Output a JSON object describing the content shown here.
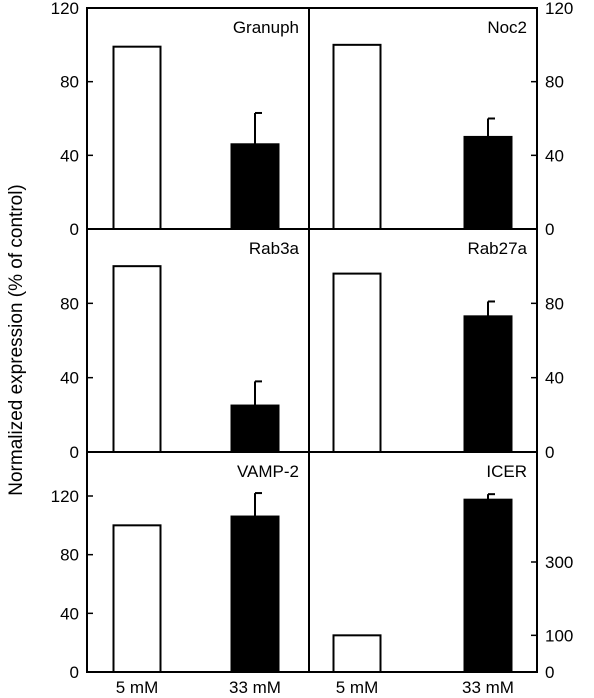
{
  "chart_data": {
    "type": "bar",
    "ylabel": "Normalized expression (% of control)",
    "categories": [
      "5 mM",
      "33 mM"
    ],
    "panels": [
      {
        "label": "Granuph",
        "row": 0,
        "col": 0,
        "ylim": [
          0,
          120
        ],
        "yticks": [
          0,
          40,
          80,
          120
        ],
        "tick_labels_side": "left",
        "values": [
          99,
          46
        ],
        "errors": [
          0,
          17
        ]
      },
      {
        "label": "Noc2",
        "row": 0,
        "col": 1,
        "ylim": [
          0,
          120
        ],
        "yticks": [
          0,
          40,
          80,
          120
        ],
        "tick_labels_side": "right",
        "values": [
          100,
          50
        ],
        "errors": [
          0,
          10
        ]
      },
      {
        "label": "Rab3a",
        "row": 1,
        "col": 0,
        "ylim": [
          0,
          120
        ],
        "yticks": [
          0,
          40,
          80
        ],
        "tick_labels_side": "left",
        "values": [
          100,
          25
        ],
        "errors": [
          0,
          13
        ]
      },
      {
        "label": "Rab27a",
        "row": 1,
        "col": 1,
        "ylim": [
          0,
          120
        ],
        "yticks": [
          0,
          40,
          80
        ],
        "tick_labels_side": "right",
        "values": [
          96,
          73
        ],
        "errors": [
          0,
          8
        ]
      },
      {
        "label": "VAMP-2",
        "row": 2,
        "col": 0,
        "ylim": [
          0,
          150
        ],
        "yticks": [
          0,
          40,
          80,
          120
        ],
        "tick_labels_side": "left",
        "values": [
          100,
          106
        ],
        "errors": [
          0,
          16
        ]
      },
      {
        "label": "ICER",
        "row": 2,
        "col": 1,
        "ylim": [
          0,
          600
        ],
        "yticks": [
          0,
          100,
          300
        ],
        "tick_labels_side": "right",
        "values": [
          100,
          470
        ],
        "errors": [
          0,
          15
        ]
      }
    ],
    "colors": {
      "control_fill": "#ffffff",
      "treated_fill": "#000000",
      "stroke": "#000000"
    },
    "grid": false,
    "legend": "none"
  }
}
